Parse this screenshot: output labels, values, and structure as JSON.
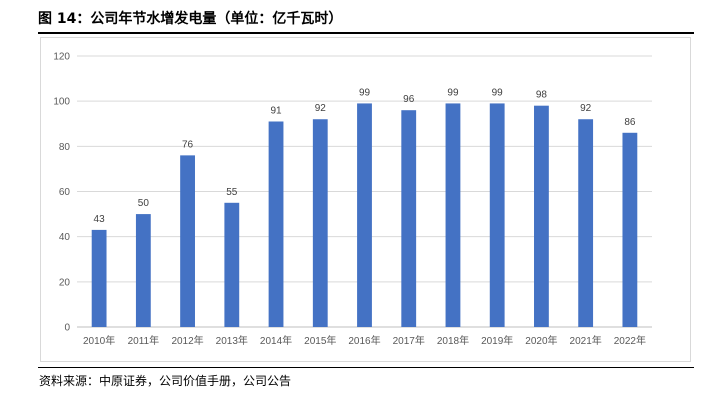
{
  "figure": {
    "title": "图 14：公司年节水增发电量（单位：亿千瓦时）",
    "source": "资料来源：中原证券，公司价值手册，公司公告"
  },
  "colors": {
    "bar": "#4472c4",
    "grid": "#d9d9d9",
    "axis": "#bfbfbf"
  },
  "chart_data": {
    "type": "bar",
    "title": "",
    "xlabel": "",
    "ylabel": "",
    "categories": [
      "2010年",
      "2011年",
      "2012年",
      "2013年",
      "2014年",
      "2015年",
      "2016年",
      "2017年",
      "2018年",
      "2019年",
      "2020年",
      "2021年",
      "2022年"
    ],
    "values": [
      43,
      50,
      76,
      55,
      91,
      92,
      99,
      96,
      99,
      99,
      98,
      92,
      86
    ],
    "ylim": [
      0,
      120
    ],
    "yticks": [
      0,
      20,
      40,
      60,
      80,
      100,
      120
    ],
    "grid": true,
    "legend": "none",
    "data_labels": true
  }
}
